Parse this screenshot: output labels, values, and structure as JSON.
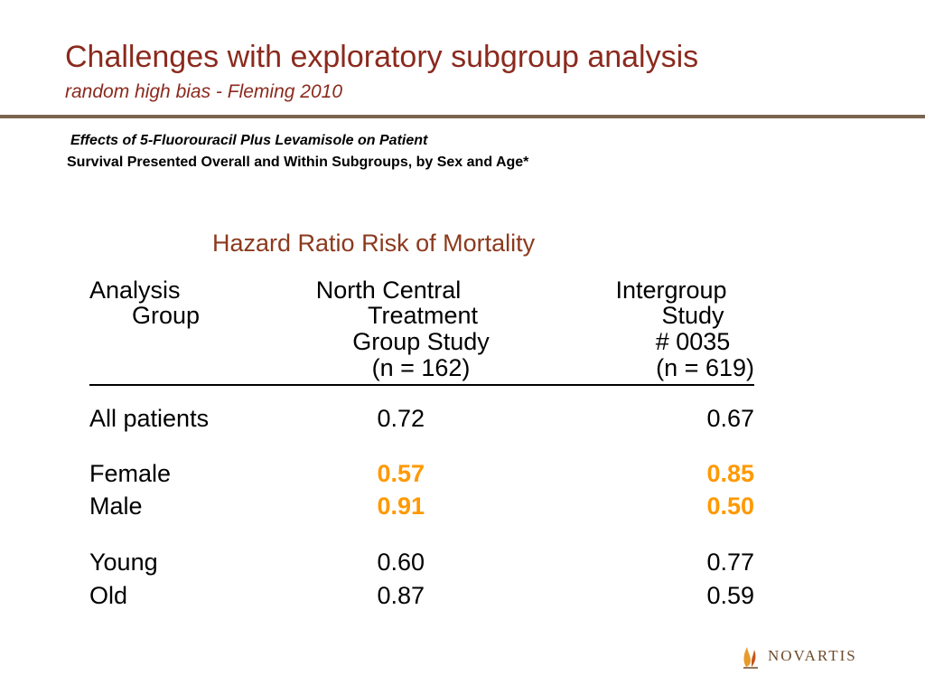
{
  "slide": {
    "title": "Challenges with exploratory subgroup analysis",
    "subtitle": "random high bias - Fleming 2010"
  },
  "caption": {
    "line1": "Effects of 5-Fluorouracil Plus Levamisole on Patient",
    "line2": "Survival Presented Overall and Within Subgroups, by Sex and Age*"
  },
  "table": {
    "heading": "Hazard Ratio Risk of Mortality",
    "col_headers": {
      "analysis": [
        "Analysis",
        "Group"
      ],
      "nctg": [
        "North Central",
        "Treatment",
        "Group Study",
        "(n = 162)"
      ],
      "intergroup": [
        "Intergroup",
        "Study",
        "# 0035",
        "(n = 619)"
      ]
    },
    "rows": [
      {
        "label": "All patients",
        "nctg": "0.72",
        "intergroup": "0.67",
        "highlight": false
      },
      {
        "label": "Female",
        "nctg": "0.57",
        "intergroup": "0.85",
        "highlight": true
      },
      {
        "label": "Male",
        "nctg": "0.91",
        "intergroup": "0.50",
        "highlight": true
      },
      {
        "label": "Young",
        "nctg": "0.60",
        "intergroup": "0.77",
        "highlight": false
      },
      {
        "label": "Old",
        "nctg": "0.87",
        "intergroup": "0.59",
        "highlight": false
      }
    ]
  },
  "logo": {
    "text": "NOVARTIS"
  },
  "colors": {
    "title": "#8b2a1e",
    "rule": "#7a6550",
    "highlight": "#ff9900"
  }
}
